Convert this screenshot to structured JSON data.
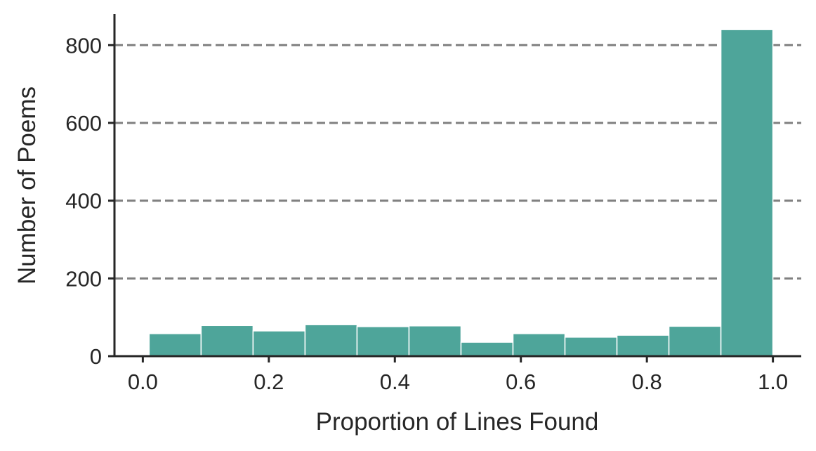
{
  "chart_data": {
    "type": "bar",
    "title": "",
    "xlabel": "Proportion of Lines Found",
    "ylabel": "Number of Poems",
    "xlim": [
      -0.045,
      1.045
    ],
    "ylim": [
      0,
      880
    ],
    "xticks": [
      "0.0",
      "0.2",
      "0.4",
      "0.6",
      "0.8",
      "1.0"
    ],
    "yticks": [
      "0",
      "200",
      "400",
      "600",
      "800"
    ],
    "bin_edges": [
      0.01,
      0.0925,
      0.175,
      0.2575,
      0.34,
      0.4225,
      0.505,
      0.5875,
      0.67,
      0.7525,
      0.835,
      0.9175,
      1.0
    ],
    "values": [
      58,
      79,
      65,
      81,
      76,
      78,
      36,
      58,
      49,
      54,
      77,
      840
    ],
    "grid": "horizontal dashed",
    "bar_color": "#4ea59a",
    "grid_color": "#808080"
  }
}
